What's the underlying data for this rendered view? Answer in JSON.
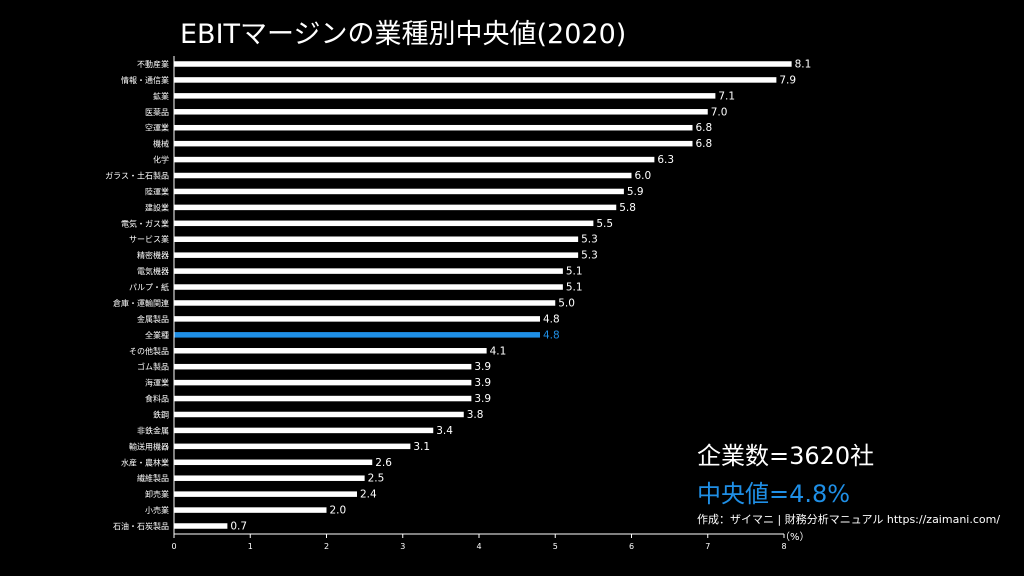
{
  "title": "EBITマージンの業種別中央値(2020)",
  "stats": {
    "company_count": "企業数=3620社",
    "median": "中央値=4.8%"
  },
  "credit": "作成：ザイマニ | 財務分析マニュアル https://zaimani.com/",
  "colors": {
    "bar": "#ffffff",
    "highlight": "#1f8fe6",
    "background": "#000000"
  },
  "chart_data": {
    "type": "bar",
    "orientation": "horizontal",
    "title": "EBITマージンの業種別中央値(2020)",
    "xlabel": "（%）",
    "ylabel": "",
    "xlim": [
      0,
      8
    ],
    "xticks": [
      0,
      1,
      2,
      3,
      4,
      5,
      6,
      7,
      8
    ],
    "grid": false,
    "highlight_category": "全業種",
    "categories": [
      "不動産業",
      "情報・通信業",
      "鉱業",
      "医薬品",
      "空運業",
      "機械",
      "化学",
      "ガラス・土石製品",
      "陸運業",
      "建設業",
      "電気・ガス業",
      "サービス業",
      "精密機器",
      "電気機器",
      "パルプ・紙",
      "倉庫・運輸関連",
      "金属製品",
      "全業種",
      "その他製品",
      "ゴム製品",
      "海運業",
      "食料品",
      "鉄鋼",
      "非鉄金属",
      "輸送用機器",
      "水産・農林業",
      "繊維製品",
      "卸売業",
      "小売業",
      "石油・石炭製品"
    ],
    "values": [
      8.1,
      7.9,
      7.1,
      7.0,
      6.8,
      6.8,
      6.3,
      6.0,
      5.9,
      5.8,
      5.5,
      5.3,
      5.3,
      5.1,
      5.1,
      5.0,
      4.8,
      4.8,
      4.1,
      3.9,
      3.9,
      3.9,
      3.8,
      3.4,
      3.1,
      2.6,
      2.5,
      2.4,
      2.0,
      0.7
    ],
    "value_labels": [
      "8.1",
      "7.9",
      "7.1",
      "7.0",
      "6.8",
      "6.8",
      "6.3",
      "6.0",
      "5.9",
      "5.8",
      "5.5",
      "5.3",
      "5.3",
      "5.1",
      "5.1",
      "5.0",
      "4.8",
      "4.8",
      "4.1",
      "3.9",
      "3.9",
      "3.9",
      "3.8",
      "3.4",
      "3.1",
      "2.6",
      "2.5",
      "2.4",
      "2.0",
      "0.7"
    ]
  }
}
